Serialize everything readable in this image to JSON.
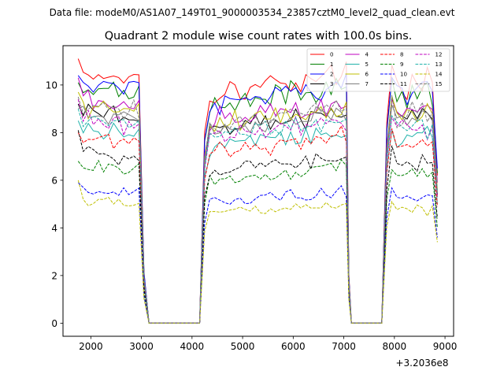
{
  "figure": {
    "suptitle": "Data file: modeM0/AS1A07_149T01_9000003534_23857cztM0_level2_quad_clean.evt"
  },
  "chart_data": {
    "type": "line",
    "title": "Quadrant 2 module wise count rates with 100.0s bins.",
    "xlabel": "",
    "ylabel": "",
    "x_offset_label": "+3.2036e8",
    "xlim": [
      1450,
      9170
    ],
    "ylim": [
      -0.55,
      11.65
    ],
    "xticks": [
      2000,
      3000,
      4000,
      5000,
      6000,
      7000,
      8000,
      9000
    ],
    "yticks": [
      0,
      2,
      4,
      6,
      8,
      10
    ],
    "grid": false,
    "legend": {
      "placement": "top-right",
      "columns": 4
    },
    "gti_segments": [
      {
        "start": 1750,
        "end": 2950
      },
      {
        "start": 4250,
        "end": 7050
      },
      {
        "start": 7850,
        "end": 8850
      }
    ],
    "zero_gaps": [
      {
        "start": 3150,
        "end": 4150
      },
      {
        "start": 7150,
        "end": 7750
      }
    ],
    "transition_points": [
      {
        "x": 3050,
        "fraction": 0.22
      },
      {
        "x": 7100,
        "fraction": 0.2
      }
    ],
    "series": [
      {
        "name": "0",
        "color": "#ff0000",
        "dash": "solid",
        "level": 10.3,
        "start": 11.1,
        "end_value": 6.2
      },
      {
        "name": "1",
        "color": "#008000",
        "dash": "solid",
        "level": 9.8,
        "start": 10.1,
        "end_value": 6.3
      },
      {
        "name": "2",
        "color": "#0000ff",
        "dash": "solid",
        "level": 9.9,
        "start": 10.4,
        "end_value": 6.5
      },
      {
        "name": "3",
        "color": "#000000",
        "dash": "solid",
        "level": 8.7,
        "start": 9.2,
        "end_value": 5.4
      },
      {
        "name": "4",
        "color": "#bf00bf",
        "dash": "solid",
        "level": 9.1,
        "start": 10.3,
        "end_value": 5.9
      },
      {
        "name": "5",
        "color": "#20b2aa",
        "dash": "solid",
        "level": 7.9,
        "start": 8.5,
        "end_value": 5.0
      },
      {
        "name": "6",
        "color": "#bfbf00",
        "dash": "solid",
        "level": 8.9,
        "start": 9.7,
        "end_value": 5.6
      },
      {
        "name": "7",
        "color": "#7f7f7f",
        "dash": "solid",
        "level": 8.6,
        "start": 9.0,
        "end_value": 5.3
      },
      {
        "name": "8",
        "color": "#ff0000",
        "dash": "dashed",
        "level": 7.7,
        "start": 8.0,
        "end_value": 4.9
      },
      {
        "name": "9",
        "color": "#008000",
        "dash": "dashed",
        "level": 6.4,
        "start": 6.8,
        "end_value": 4.0
      },
      {
        "name": "10",
        "color": "#0000ff",
        "dash": "dashed",
        "level": 5.4,
        "start": 5.9,
        "end_value": 3.6
      },
      {
        "name": "11",
        "color": "#000000",
        "dash": "dashed",
        "level": 6.8,
        "start": 8.1,
        "end_value": 4.4
      },
      {
        "name": "12",
        "color": "#bf00bf",
        "dash": "dashed",
        "level": 8.3,
        "start": 9.4,
        "end_value": 5.3
      },
      {
        "name": "13",
        "color": "#20b2aa",
        "dash": "dashed",
        "level": 8.4,
        "start": 9.0,
        "end_value": 5.5
      },
      {
        "name": "14",
        "color": "#bfbf00",
        "dash": "dashed",
        "level": 4.95,
        "start": 6.0,
        "end_value": 3.4
      },
      {
        "name": "15",
        "color": "#7f7f7f",
        "dash": "dashed",
        "level": 8.9,
        "start": 9.5,
        "end_value": 5.4
      }
    ]
  }
}
